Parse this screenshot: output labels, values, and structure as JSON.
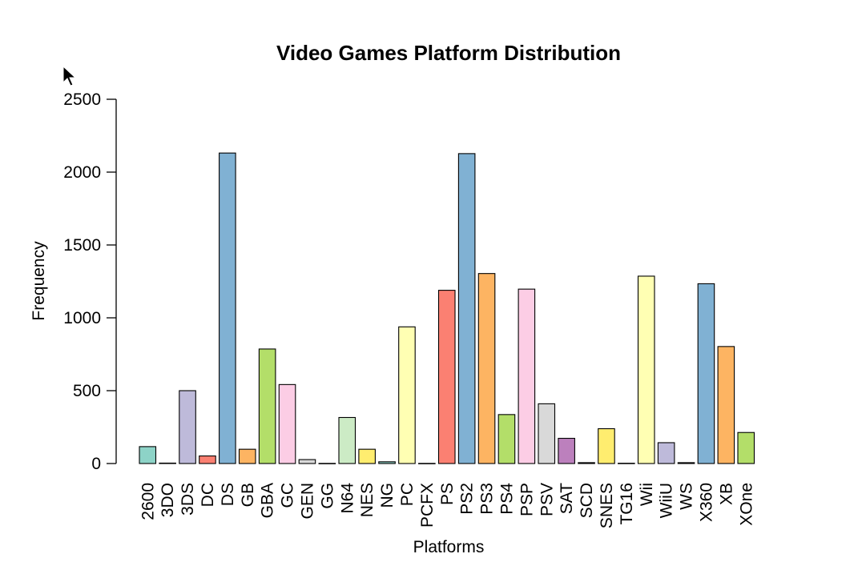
{
  "chart_data": {
    "type": "bar",
    "title": "Video Games Platform Distribution",
    "xlabel": "Platforms",
    "ylabel": "Frequency",
    "ylim": [
      0,
      2500
    ],
    "yticks": [
      "0",
      "500",
      "1000",
      "1500",
      "2000",
      "2500"
    ],
    "grid": false,
    "categories": [
      "2600",
      "3DO",
      "3DS",
      "DC",
      "DS",
      "GB",
      "GBA",
      "GC",
      "GEN",
      "GG",
      "N64",
      "NES",
      "NG",
      "PC",
      "PCFX",
      "PS",
      "PS2",
      "PS3",
      "PS4",
      "PSP",
      "PSV",
      "SAT",
      "SCD",
      "SNES",
      "TG16",
      "Wii",
      "WiiU",
      "WS",
      "X360",
      "XB",
      "XOne"
    ],
    "values": [
      116,
      3,
      500,
      52,
      2131,
      98,
      786,
      542,
      27,
      1,
      316,
      98,
      12,
      938,
      1,
      1189,
      2127,
      1304,
      336,
      1197,
      410,
      173,
      6,
      239,
      2,
      1286,
      143,
      6,
      1234,
      803,
      213
    ],
    "colors": [
      "#8dd3c7",
      "#ffffb3",
      "#bebada",
      "#fb8072",
      "#80b1d3",
      "#fdb462",
      "#b3de69",
      "#fccde5",
      "#d9d9d9",
      "#bc80bd",
      "#ccebc5",
      "#ffed6f",
      "#8dd3c7",
      "#ffffb3",
      "#bebada",
      "#fb8072",
      "#80b1d3",
      "#fdb462",
      "#b3de69",
      "#fccde5",
      "#d9d9d9",
      "#bc80bd",
      "#ccebc5",
      "#ffed6f",
      "#8dd3c7",
      "#ffffb3",
      "#bebada",
      "#fb8072",
      "#80b1d3",
      "#fdb462",
      "#b3de69"
    ]
  },
  "cursor_icon": "mouse-pointer-icon"
}
